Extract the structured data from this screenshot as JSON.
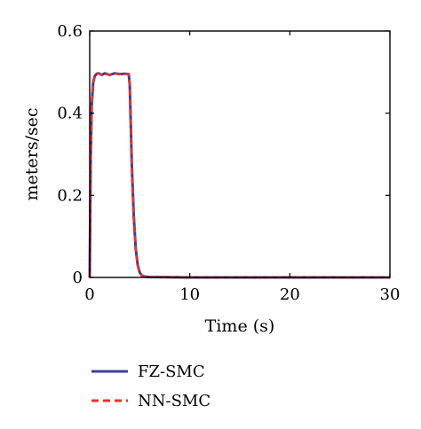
{
  "chart_data": {
    "type": "line",
    "xlabel": "Time (s)",
    "ylabel": "meters/sec",
    "xlim": [
      0,
      30
    ],
    "ylim": [
      0,
      0.6
    ],
    "xticks": [
      0,
      10,
      20,
      30
    ],
    "yticks": [
      0,
      0.2,
      0.4,
      0.6
    ],
    "ytick_labels": [
      "0",
      "0.2",
      "0.4",
      "0.6"
    ],
    "xtick_labels": [
      "0",
      "10",
      "20",
      "30"
    ],
    "grid": false,
    "legend_position": "below",
    "series": [
      {
        "name": "FZ-SMC",
        "color": "#3b3fa0",
        "style": "solid",
        "x": [
          0,
          0.1,
          0.2,
          0.35,
          0.5,
          0.7,
          0.9,
          1.2,
          1.5,
          2.0,
          2.5,
          3.0,
          3.5,
          3.9,
          4.0,
          4.1,
          4.2,
          4.4,
          4.6,
          4.8,
          5.0,
          5.2,
          5.5,
          6.0,
          10,
          15,
          20,
          25,
          30
        ],
        "y": [
          0,
          0.29,
          0.42,
          0.475,
          0.49,
          0.496,
          0.497,
          0.493,
          0.497,
          0.493,
          0.497,
          0.495,
          0.496,
          0.495,
          0.47,
          0.38,
          0.28,
          0.15,
          0.07,
          0.03,
          0.012,
          0.005,
          0.002,
          0.001,
          0,
          0,
          0,
          0,
          0
        ]
      },
      {
        "name": "NN-SMC",
        "color": "#e8312a",
        "style": "dashed",
        "x": [
          0,
          0.1,
          0.2,
          0.35,
          0.5,
          0.7,
          0.9,
          1.2,
          1.5,
          2.0,
          2.5,
          3.0,
          3.5,
          3.9,
          4.0,
          4.1,
          4.2,
          4.4,
          4.6,
          4.8,
          5.0,
          5.2,
          5.5,
          6.0,
          10,
          15,
          20,
          25,
          30
        ],
        "y": [
          0,
          0.29,
          0.42,
          0.475,
          0.49,
          0.496,
          0.497,
          0.493,
          0.497,
          0.493,
          0.497,
          0.495,
          0.496,
          0.495,
          0.47,
          0.38,
          0.28,
          0.15,
          0.07,
          0.03,
          0.012,
          0.005,
          0.002,
          0.001,
          0,
          0,
          0,
          0,
          0
        ]
      }
    ]
  }
}
